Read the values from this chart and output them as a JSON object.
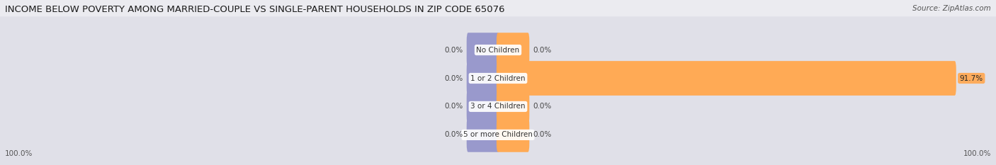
{
  "title": "INCOME BELOW POVERTY AMONG MARRIED-COUPLE VS SINGLE-PARENT HOUSEHOLDS IN ZIP CODE 65076",
  "source": "Source: ZipAtlas.com",
  "categories": [
    "No Children",
    "1 or 2 Children",
    "3 or 4 Children",
    "5 or more Children"
  ],
  "married_values": [
    0.0,
    0.0,
    0.0,
    0.0
  ],
  "single_values": [
    0.0,
    91.7,
    0.0,
    0.0
  ],
  "married_color": "#9999cc",
  "single_color": "#ffaa55",
  "xlim_left": -100,
  "xlim_right": 100,
  "left_label": "100.0%",
  "right_label": "100.0%",
  "background_color": "#ebebf0",
  "bar_bg_color": "#e0e0e8",
  "title_fontsize": 9.5,
  "source_fontsize": 7.5,
  "label_fontsize": 7.5,
  "tick_fontsize": 7.5,
  "category_fontsize": 7.5
}
